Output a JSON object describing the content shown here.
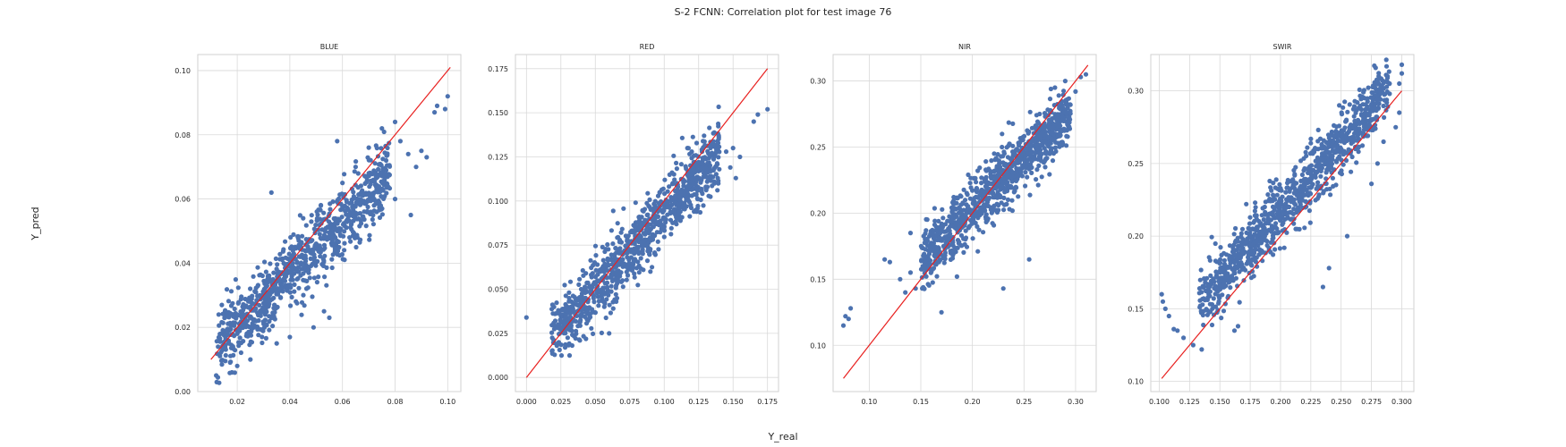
{
  "figure": {
    "title": "S-2 FCNN: Correlation plot for test image 76",
    "xlabel": "Y_real",
    "ylabel": "Y_pred"
  },
  "colors": {
    "points": "#4c72b0",
    "reference_line": "#e8201f",
    "grid": "#d9d9d9",
    "frame": "#d0d0d0"
  },
  "chart_data": [
    {
      "type": "scatter",
      "title": "BLUE",
      "xlim": [
        0.005,
        0.105
      ],
      "ylim": [
        0.0,
        0.105
      ],
      "xticks": [
        "0.02",
        "0.04",
        "0.06",
        "0.08",
        "0.10"
      ],
      "xtick_values": [
        0.02,
        0.04,
        0.06,
        0.08,
        0.1
      ],
      "yticks": [
        "0.00",
        "0.02",
        "0.04",
        "0.06",
        "0.08",
        "0.10"
      ],
      "ytick_values": [
        0.0,
        0.02,
        0.04,
        0.06,
        0.08,
        0.1
      ],
      "reference_line": [
        [
          0.01,
          0.01
        ],
        [
          0.101,
          0.101
        ]
      ],
      "cloud": {
        "x_min": 0.012,
        "x_max": 0.078,
        "center_slope": 0.82,
        "center_intercept": 0.004,
        "spread": 0.0055,
        "n": 900
      },
      "outliers": [
        [
          0.012,
          0.005
        ],
        [
          0.033,
          0.062
        ],
        [
          0.058,
          0.078
        ],
        [
          0.06,
          0.065
        ],
        [
          0.065,
          0.07
        ],
        [
          0.07,
          0.076
        ],
        [
          0.075,
          0.082
        ],
        [
          0.08,
          0.084
        ],
        [
          0.082,
          0.078
        ],
        [
          0.085,
          0.074
        ],
        [
          0.088,
          0.07
        ],
        [
          0.08,
          0.06
        ],
        [
          0.076,
          0.066
        ],
        [
          0.072,
          0.058
        ],
        [
          0.073,
          0.063
        ],
        [
          0.07,
          0.068
        ],
        [
          0.09,
          0.075
        ],
        [
          0.092,
          0.073
        ],
        [
          0.086,
          0.055
        ],
        [
          0.095,
          0.087
        ],
        [
          0.096,
          0.089
        ],
        [
          0.1,
          0.092
        ],
        [
          0.099,
          0.088
        ],
        [
          0.055,
          0.023
        ],
        [
          0.053,
          0.025
        ],
        [
          0.049,
          0.02
        ],
        [
          0.04,
          0.017
        ],
        [
          0.035,
          0.015
        ],
        [
          0.03,
          0.026
        ],
        [
          0.025,
          0.01
        ],
        [
          0.02,
          0.008
        ],
        [
          0.018,
          0.006
        ]
      ]
    },
    {
      "type": "scatter",
      "title": "RED",
      "xlim": [
        -0.008,
        0.183
      ],
      "ylim": [
        -0.008,
        0.183
      ],
      "xticks": [
        "0.000",
        "0.025",
        "0.050",
        "0.075",
        "0.100",
        "0.125",
        "0.150",
        "0.175"
      ],
      "xtick_values": [
        0.0,
        0.025,
        0.05,
        0.075,
        0.1,
        0.125,
        0.15,
        0.175
      ],
      "yticks": [
        "0.000",
        "0.025",
        "0.050",
        "0.075",
        "0.100",
        "0.125",
        "0.150",
        "0.175"
      ],
      "ytick_values": [
        0.0,
        0.025,
        0.05,
        0.075,
        0.1,
        0.125,
        0.15,
        0.175
      ],
      "reference_line": [
        [
          0.0,
          0.0
        ],
        [
          0.175,
          0.175
        ]
      ],
      "cloud": {
        "x_min": 0.018,
        "x_max": 0.14,
        "center_slope": 0.86,
        "center_intercept": 0.007,
        "spread": 0.009,
        "n": 950
      },
      "outliers": [
        [
          0.0,
          0.034
        ],
        [
          0.165,
          0.145
        ],
        [
          0.168,
          0.149
        ],
        [
          0.175,
          0.152
        ],
        [
          0.145,
          0.128
        ],
        [
          0.15,
          0.13
        ],
        [
          0.155,
          0.125
        ],
        [
          0.135,
          0.133
        ],
        [
          0.14,
          0.118
        ],
        [
          0.148,
          0.119
        ],
        [
          0.152,
          0.113
        ],
        [
          0.11,
          0.108
        ],
        [
          0.12,
          0.128
        ],
        [
          0.125,
          0.122
        ],
        [
          0.1,
          0.085
        ],
        [
          0.09,
          0.06
        ],
        [
          0.08,
          0.062
        ],
        [
          0.06,
          0.025
        ],
        [
          0.04,
          0.035
        ],
        [
          0.02,
          0.04
        ]
      ]
    },
    {
      "type": "scatter",
      "title": "NIR",
      "xlim": [
        0.065,
        0.32
      ],
      "ylim": [
        0.065,
        0.32
      ],
      "xticks": [
        "0.10",
        "0.15",
        "0.20",
        "0.25",
        "0.30"
      ],
      "xtick_values": [
        0.1,
        0.15,
        0.2,
        0.25,
        0.3
      ],
      "yticks": [
        "0.10",
        "0.15",
        "0.20",
        "0.25",
        "0.30"
      ],
      "ytick_values": [
        0.1,
        0.15,
        0.2,
        0.25,
        0.3
      ],
      "reference_line": [
        [
          0.075,
          0.075
        ],
        [
          0.312,
          0.312
        ]
      ],
      "cloud": {
        "x_min": 0.15,
        "x_max": 0.295,
        "center_slope": 0.78,
        "center_intercept": 0.047,
        "spread": 0.011,
        "n": 1000
      },
      "outliers": [
        [
          0.075,
          0.115
        ],
        [
          0.077,
          0.122
        ],
        [
          0.08,
          0.12
        ],
        [
          0.082,
          0.128
        ],
        [
          0.115,
          0.165
        ],
        [
          0.12,
          0.163
        ],
        [
          0.13,
          0.15
        ],
        [
          0.135,
          0.14
        ],
        [
          0.14,
          0.155
        ],
        [
          0.145,
          0.143
        ],
        [
          0.14,
          0.185
        ],
        [
          0.17,
          0.125
        ],
        [
          0.185,
          0.152
        ],
        [
          0.23,
          0.143
        ],
        [
          0.255,
          0.165
        ],
        [
          0.3,
          0.292
        ],
        [
          0.305,
          0.303
        ],
        [
          0.31,
          0.305
        ],
        [
          0.295,
          0.282
        ],
        [
          0.29,
          0.3
        ],
        [
          0.28,
          0.295
        ]
      ]
    },
    {
      "type": "scatter",
      "title": "SWIR",
      "xlim": [
        0.093,
        0.31
      ],
      "ylim": [
        0.093,
        0.325
      ],
      "xticks": [
        "0.100",
        "0.125",
        "0.150",
        "0.175",
        "0.200",
        "0.225",
        "0.250",
        "0.275",
        "0.300"
      ],
      "xtick_values": [
        0.1,
        0.125,
        0.15,
        0.175,
        0.2,
        0.225,
        0.25,
        0.275,
        0.3
      ],
      "yticks": [
        "0.10",
        "0.15",
        "0.20",
        "0.25",
        "0.30"
      ],
      "ytick_values": [
        0.1,
        0.15,
        0.2,
        0.25,
        0.3
      ],
      "reference_line": [
        [
          0.102,
          0.102
        ],
        [
          0.3,
          0.3
        ]
      ],
      "cloud": {
        "x_min": 0.133,
        "x_max": 0.29,
        "center_slope": 0.96,
        "center_intercept": 0.025,
        "spread": 0.011,
        "n": 1000
      },
      "outliers": [
        [
          0.102,
          0.16
        ],
        [
          0.103,
          0.155
        ],
        [
          0.105,
          0.15
        ],
        [
          0.108,
          0.145
        ],
        [
          0.112,
          0.136
        ],
        [
          0.115,
          0.135
        ],
        [
          0.12,
          0.13
        ],
        [
          0.128,
          0.125
        ],
        [
          0.135,
          0.122
        ],
        [
          0.162,
          0.135
        ],
        [
          0.165,
          0.138
        ],
        [
          0.235,
          0.165
        ],
        [
          0.24,
          0.178
        ],
        [
          0.255,
          0.2
        ],
        [
          0.275,
          0.236
        ],
        [
          0.28,
          0.25
        ],
        [
          0.285,
          0.265
        ],
        [
          0.295,
          0.275
        ],
        [
          0.298,
          0.305
        ],
        [
          0.3,
          0.318
        ],
        [
          0.3,
          0.312
        ],
        [
          0.29,
          0.298
        ],
        [
          0.298,
          0.285
        ]
      ]
    }
  ]
}
